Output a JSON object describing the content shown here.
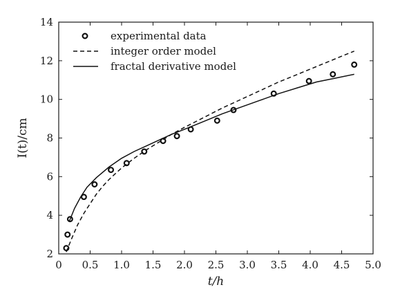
{
  "chart_data": {
    "type": "line",
    "title": "",
    "xlabel": "t/h",
    "ylabel": "I(t)/cm",
    "xlim": [
      0,
      5.0
    ],
    "ylim": [
      2,
      14
    ],
    "x_ticks": [
      0,
      0.5,
      1.0,
      1.5,
      2.0,
      2.5,
      3.0,
      3.5,
      4.0,
      4.5,
      5.0
    ],
    "x_tick_labels": [
      "0",
      "0.5",
      "1.0",
      "1.5",
      "2.0",
      "2.5",
      "3.0",
      "3.5",
      "4.0",
      "4.5",
      "5.0"
    ],
    "y_ticks": [
      2,
      4,
      6,
      8,
      10,
      12,
      14
    ],
    "y_tick_labels": [
      "2",
      "4",
      "6",
      "8",
      "10",
      "12",
      "14"
    ],
    "grid": false,
    "legend_position": "top-left",
    "series": [
      {
        "name": "experimental data",
        "style": "markers",
        "x": [
          0.12,
          0.14,
          0.18,
          0.4,
          0.57,
          0.83,
          1.08,
          1.36,
          1.66,
          1.88,
          2.1,
          2.52,
          2.78,
          3.42,
          3.98,
          4.36,
          4.7
        ],
        "y": [
          2.3,
          3.0,
          3.8,
          4.95,
          5.6,
          6.35,
          6.7,
          7.3,
          7.85,
          8.1,
          8.45,
          8.9,
          9.45,
          10.3,
          10.95,
          11.3,
          11.8
        ]
      },
      {
        "name": "integer order model",
        "style": "dashed",
        "x": [
          0.12,
          0.2,
          0.3,
          0.4,
          0.5,
          0.6,
          0.7,
          0.8,
          0.9,
          1.0,
          1.2,
          1.4,
          1.6,
          1.8,
          2.0,
          2.3,
          2.6,
          2.9,
          3.2,
          3.5,
          3.8,
          4.1,
          4.4,
          4.7
        ],
        "y": [
          2.1,
          2.75,
          3.5,
          4.1,
          4.6,
          5.1,
          5.5,
          5.85,
          6.15,
          6.45,
          6.95,
          7.4,
          7.8,
          8.2,
          8.55,
          9.05,
          9.55,
          10.0,
          10.45,
          10.9,
          11.3,
          11.7,
          12.1,
          12.5
        ]
      },
      {
        "name": "fractal derivative model",
        "style": "solid",
        "x": [
          0.17,
          0.25,
          0.35,
          0.45,
          0.6,
          0.8,
          1.0,
          1.2,
          1.4,
          1.6,
          1.8,
          2.0,
          2.3,
          2.6,
          2.9,
          3.2,
          3.5,
          3.8,
          4.1,
          4.4,
          4.7
        ],
        "y": [
          3.7,
          4.35,
          4.95,
          5.45,
          5.95,
          6.5,
          6.95,
          7.3,
          7.6,
          7.9,
          8.2,
          8.45,
          8.85,
          9.25,
          9.6,
          9.95,
          10.3,
          10.6,
          10.9,
          11.1,
          11.3
        ]
      }
    ]
  }
}
